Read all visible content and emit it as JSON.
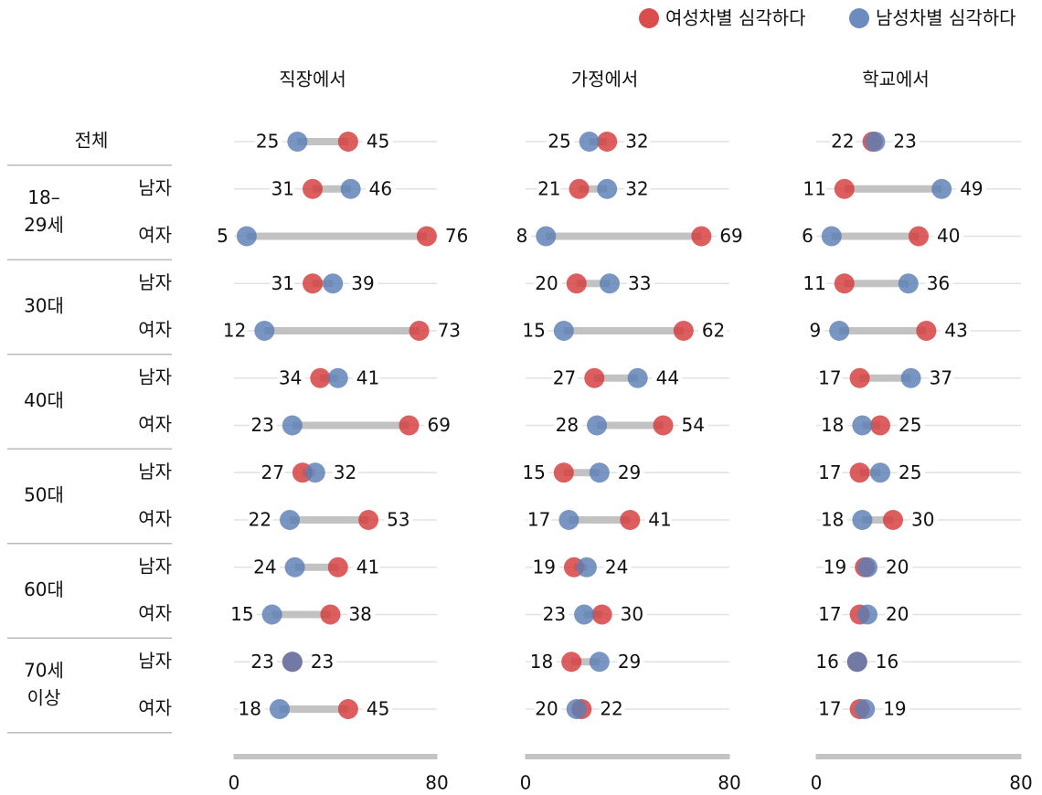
{
  "chart_data": {
    "type": "dumbbell",
    "series": [
      {
        "name": "여성차별 심각하다",
        "color": "#d63a3a"
      },
      {
        "name": "남성차별 심각하다",
        "color": "#5b7fb5"
      }
    ],
    "groups": [
      {
        "label": [
          "전체"
        ],
        "members": []
      },
      {
        "label": [
          "18–",
          "29세"
        ],
        "members": [
          "남자",
          "여자"
        ]
      },
      {
        "label": [
          "30대"
        ],
        "members": [
          "남자",
          "여자"
        ]
      },
      {
        "label": [
          "40대"
        ],
        "members": [
          "남자",
          "여자"
        ]
      },
      {
        "label": [
          "50대"
        ],
        "members": [
          "남자",
          "여자"
        ]
      },
      {
        "label": [
          "60대"
        ],
        "members": [
          "남자",
          "여자"
        ]
      },
      {
        "label": [
          "70세",
          "이상"
        ],
        "members": [
          "남자",
          "여자"
        ]
      }
    ],
    "panels": [
      {
        "title": "직장에서",
        "xlim": [
          0,
          80
        ],
        "xticks": [
          0,
          80
        ],
        "series": [
          {
            "values": [
              45,
              31,
              76,
              31,
              73,
              34,
              69,
              27,
              53,
              41,
              38,
              23,
              45
            ]
          },
          {
            "values": [
              25,
              46,
              5,
              39,
              12,
              41,
              23,
              32,
              22,
              24,
              15,
              23,
              18
            ]
          }
        ]
      },
      {
        "title": "가정에서",
        "xlim": [
          0,
          80
        ],
        "xticks": [
          0,
          80
        ],
        "series": [
          {
            "values": [
              32,
              21,
              69,
              20,
              62,
              27,
              54,
              15,
              41,
              19,
              30,
              18,
              22
            ]
          },
          {
            "values": [
              25,
              32,
              8,
              33,
              15,
              44,
              28,
              29,
              17,
              24,
              23,
              29,
              20
            ]
          }
        ]
      },
      {
        "title": "학교에서",
        "xlim": [
          0,
          80
        ],
        "xticks": [
          0,
          80
        ],
        "series": [
          {
            "values": [
              22,
              11,
              40,
              11,
              43,
              17,
              25,
              17,
              30,
              19,
              17,
              16,
              17
            ]
          },
          {
            "values": [
              23,
              49,
              6,
              36,
              9,
              37,
              18,
              25,
              18,
              20,
              20,
              16,
              19
            ]
          }
        ]
      }
    ]
  }
}
